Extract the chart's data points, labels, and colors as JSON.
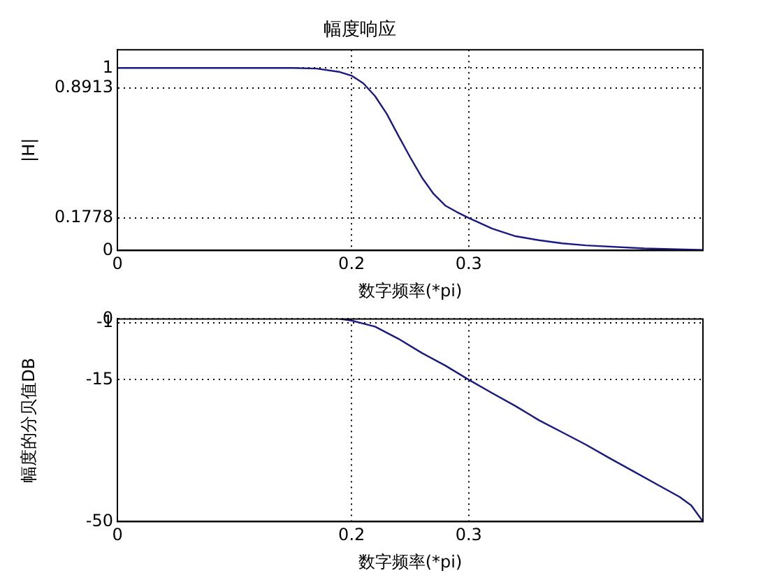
{
  "chart_data": [
    {
      "type": "line",
      "title": "幅度响应",
      "xlabel": "数字频率(*pi)",
      "ylabel": "|H|",
      "color": "#1a1a80",
      "x": [
        0,
        0.1,
        0.15,
        0.17,
        0.19,
        0.2,
        0.21,
        0.22,
        0.23,
        0.24,
        0.25,
        0.26,
        0.27,
        0.28,
        0.29,
        0.3,
        0.32,
        0.34,
        0.36,
        0.38,
        0.4,
        0.45,
        0.5
      ],
      "values": [
        1,
        1,
        1,
        0.997,
        0.978,
        0.958,
        0.916,
        0.846,
        0.749,
        0.628,
        0.511,
        0.4,
        0.31,
        0.246,
        0.21,
        0.178,
        0.12,
        0.078,
        0.056,
        0.039,
        0.028,
        0.011,
        0.003
      ],
      "xlim": [
        0,
        0.5
      ],
      "ylim": [
        0,
        1.1
      ],
      "xticks": [
        0,
        0.2,
        0.3
      ],
      "yticks": [
        0,
        0.1778,
        0.8913,
        1
      ],
      "grid": true
    },
    {
      "type": "line",
      "xlabel": "数字频率(*pi)",
      "ylabel": "幅度的分贝值DB",
      "color": "#1a1a80",
      "x": [
        0.19,
        0.2,
        0.22,
        0.24,
        0.26,
        0.28,
        0.3,
        0.32,
        0.34,
        0.36,
        0.38,
        0.4,
        0.42,
        0.44,
        0.46,
        0.48,
        0.49,
        0.5
      ],
      "values": [
        0,
        -0.4,
        -1.9,
        -4.9,
        -8.4,
        -11.5,
        -15,
        -18.3,
        -21.5,
        -25,
        -28,
        -31,
        -34.3,
        -37.5,
        -40.7,
        -43.9,
        -46,
        -50
      ],
      "xlim": [
        0,
        0.5
      ],
      "ylim": [
        -50,
        0
      ],
      "xticks": [
        0,
        0.2,
        0.3
      ],
      "yticks": [
        -50,
        -15,
        -1,
        0
      ],
      "grid": true
    }
  ]
}
